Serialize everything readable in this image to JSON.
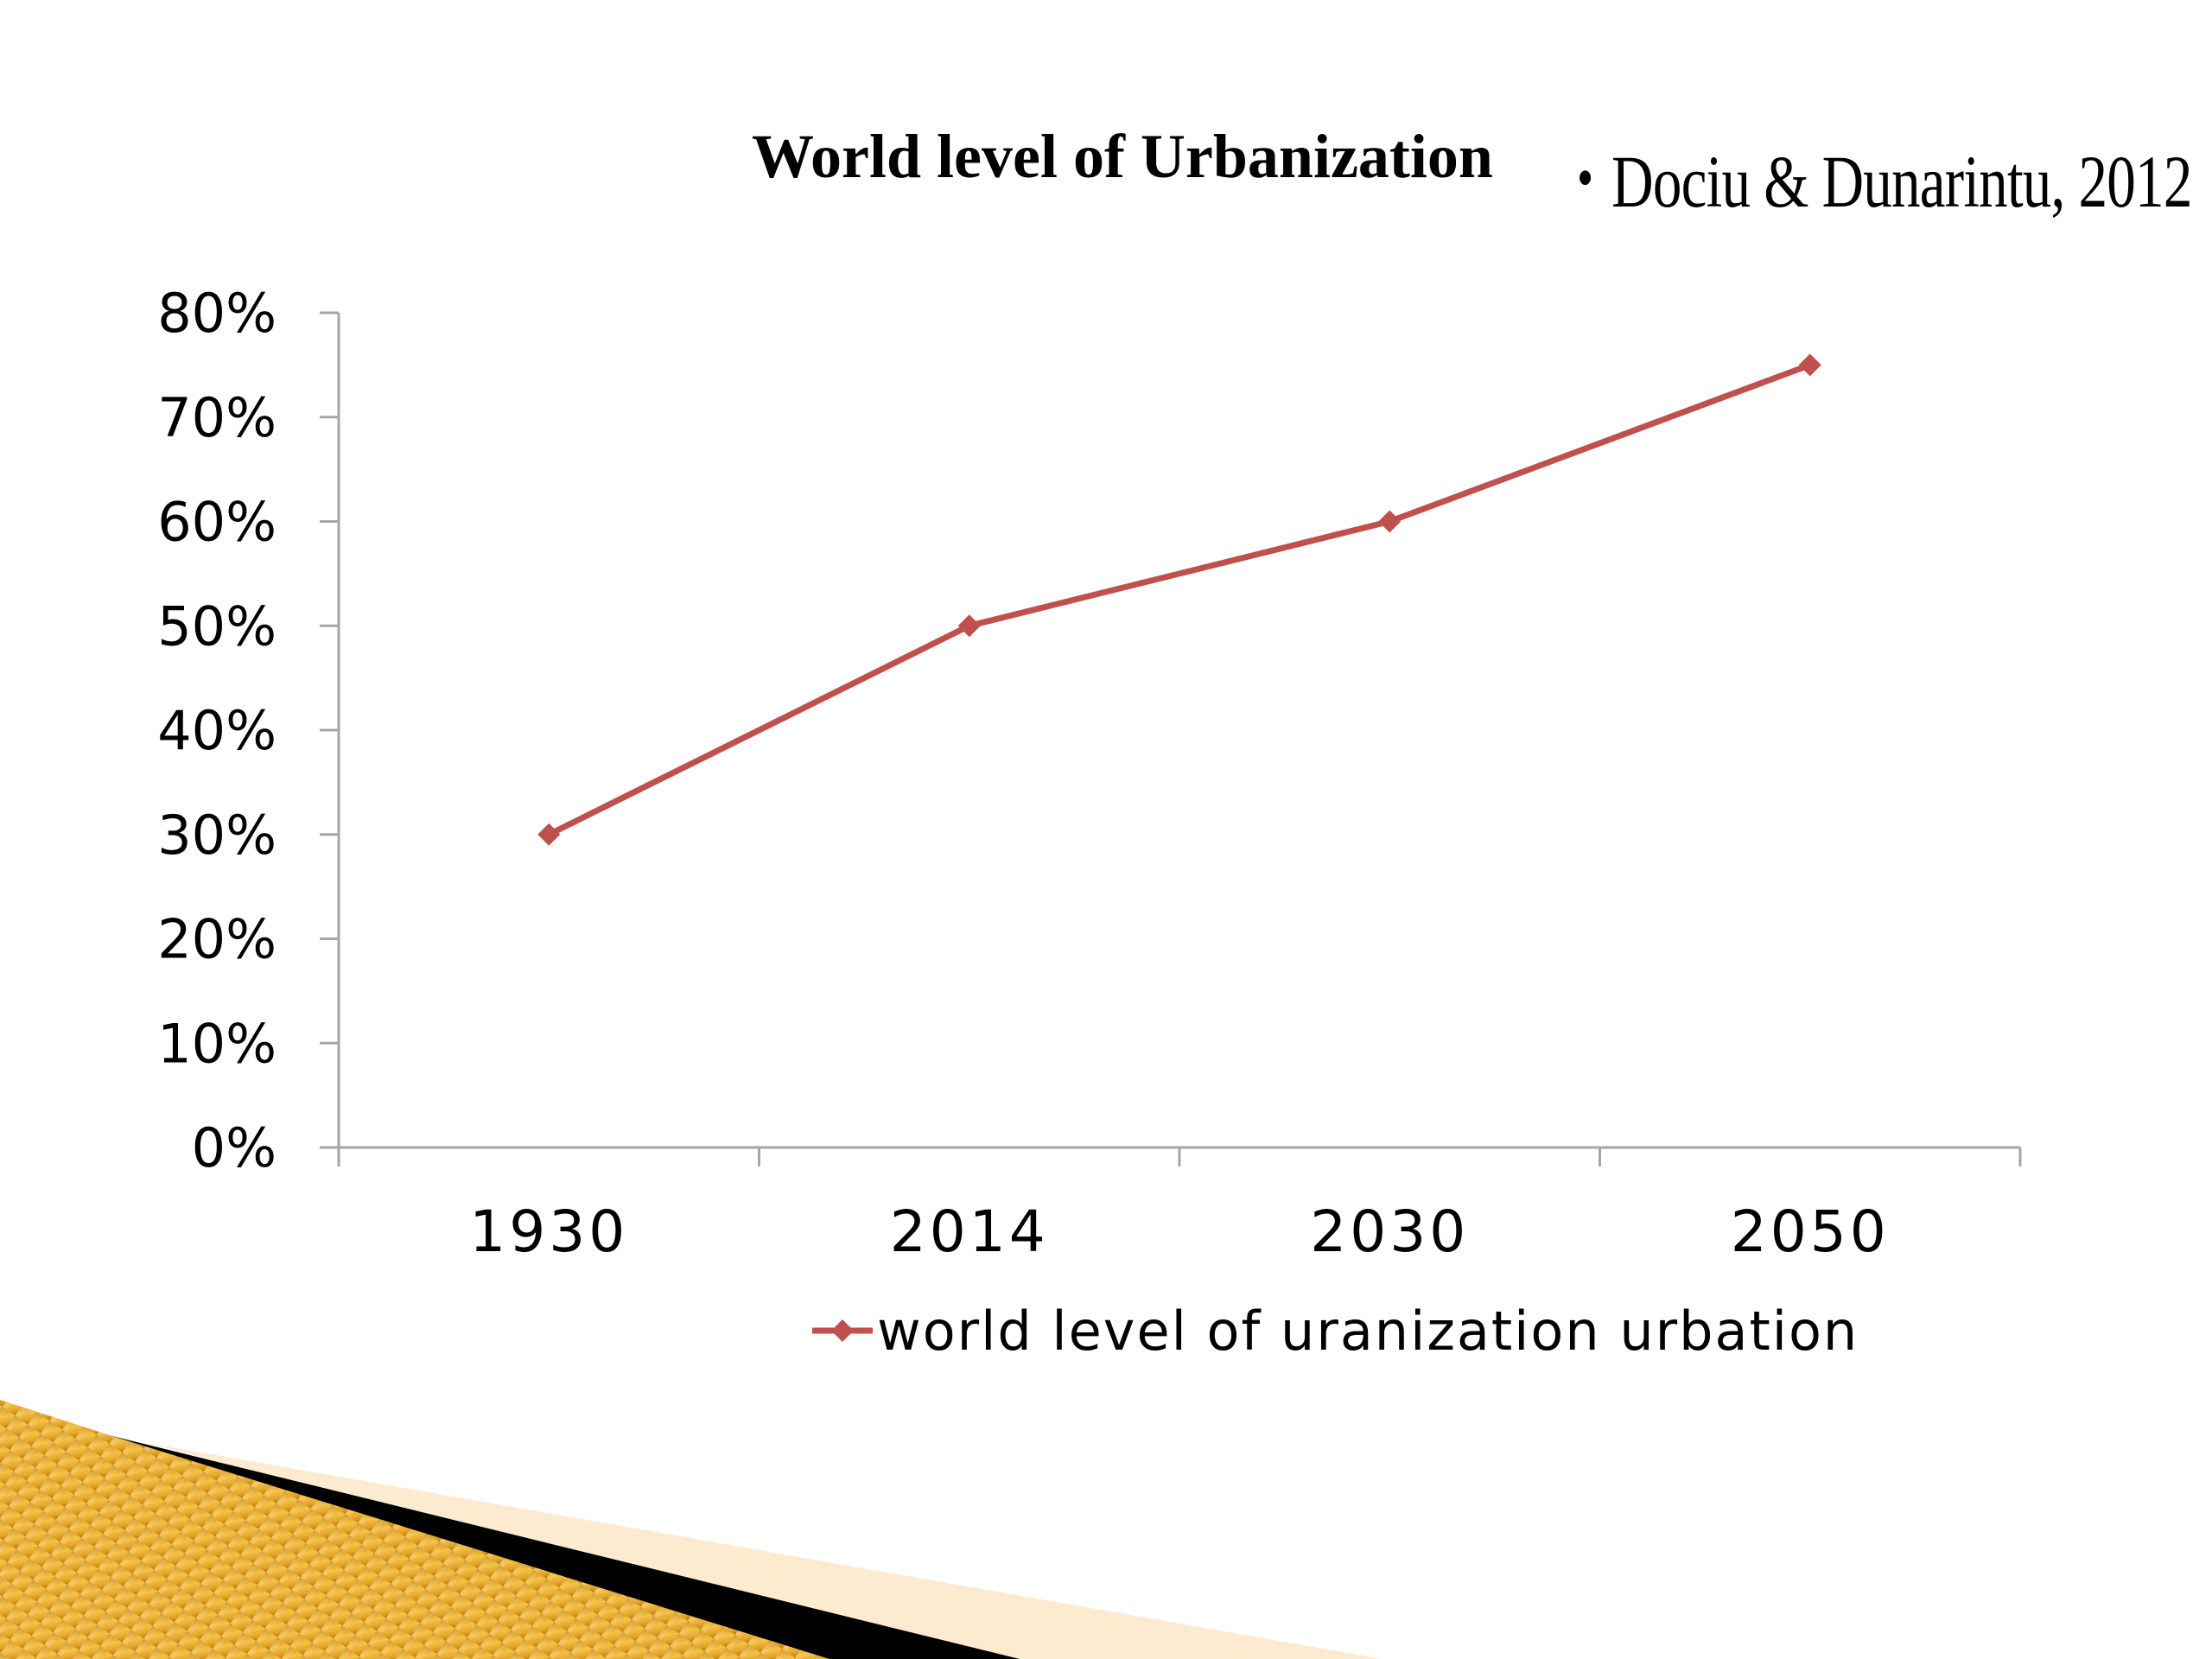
{
  "slide": {
    "citation_bullet": "•",
    "citation": "Dociu & Dunarintu, 2012"
  },
  "chart_data": {
    "type": "line",
    "title": "World level of Urbanization",
    "categories": [
      "1930",
      "2014",
      "2030",
      "2050"
    ],
    "series": [
      {
        "name": "world level of uranization urbation",
        "values": [
          0.3,
          0.5,
          0.6,
          0.75
        ],
        "color": "#c0504d",
        "marker": "diamond"
      }
    ],
    "y_ticks": [
      "0%",
      "10%",
      "20%",
      "30%",
      "40%",
      "50%",
      "60%",
      "70%",
      "80%"
    ],
    "ylim": [
      0,
      0.8
    ],
    "y_format": "percent",
    "grid": false,
    "legend_position": "bottom",
    "xlabel": "",
    "ylabel": ""
  },
  "colors": {
    "axis": "#a6a6a6",
    "ribbon_gold": "#e2a21f",
    "ribbon_black": "#000000",
    "ribbon_cream": "#fdebd0"
  }
}
